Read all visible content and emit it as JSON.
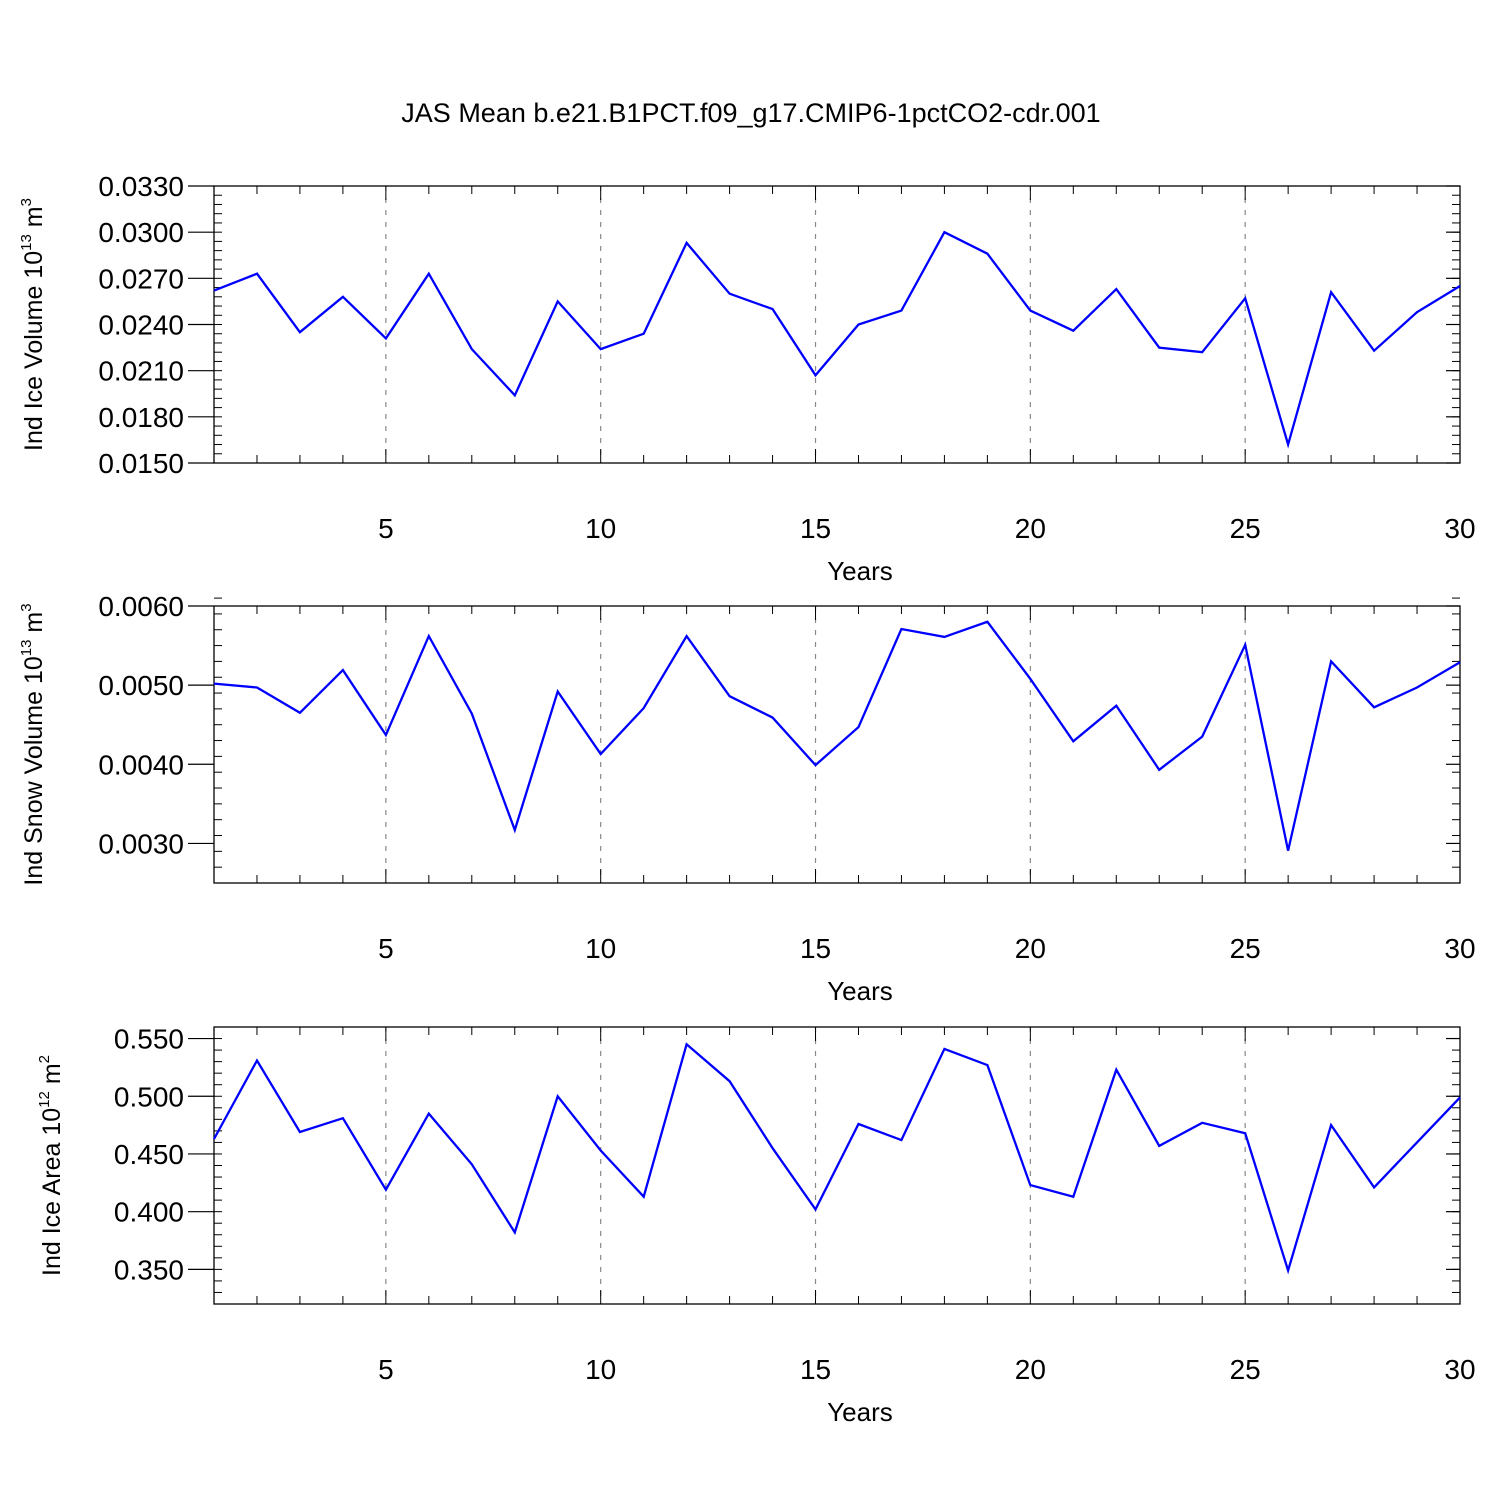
{
  "title": "JAS Mean b.e21.B1PCT.f09_g17.CMIP6-1pctCO2-cdr.001",
  "line_color": "#0000ff",
  "chart_data": [
    {
      "type": "line",
      "title": "JAS Mean b.e21.B1PCT.f09_g17.CMIP6-1pctCO2-cdr.001",
      "ylabel": "Ind Ice Volume 10",
      "ylabel_exp": "13",
      "ylabel_unit": "m",
      "ylabel_unit_exp": "3",
      "xlabel": "Years",
      "xlim": [
        1,
        30
      ],
      "ylim": [
        0.015,
        0.033
      ],
      "yticks": [
        0.015,
        0.018,
        0.021,
        0.024,
        0.027,
        0.03,
        0.033
      ],
      "ytick_labels": [
        "0.0150",
        "0.0180",
        "0.0210",
        "0.0240",
        "0.0270",
        "0.0300",
        "0.0330"
      ],
      "y_minor_step": 0.0006,
      "xticks": [
        5,
        10,
        15,
        20,
        25,
        30
      ],
      "xtick_labels": [
        "5",
        "10",
        "15",
        "20",
        "25",
        "30"
      ],
      "x": [
        1,
        2,
        3,
        4,
        5,
        6,
        7,
        8,
        9,
        10,
        11,
        12,
        13,
        14,
        15,
        16,
        17,
        18,
        19,
        20,
        21,
        22,
        23,
        24,
        25,
        26,
        27,
        28,
        29,
        30
      ],
      "series": [
        {
          "name": "Ind Ice Volume",
          "values": [
            0.0262,
            0.0273,
            0.0235,
            0.0258,
            0.0231,
            0.0273,
            0.0224,
            0.0194,
            0.0255,
            0.0224,
            0.0234,
            0.0293,
            0.026,
            0.025,
            0.0207,
            0.024,
            0.0249,
            0.03,
            0.0286,
            0.0249,
            0.0236,
            0.0263,
            0.0225,
            0.0222,
            0.0257,
            0.0162,
            0.0261,
            0.0223,
            0.0248,
            0.0265
          ]
        }
      ]
    },
    {
      "type": "line",
      "ylabel": "Ind Snow Volume 10",
      "ylabel_exp": "13",
      "ylabel_unit": "m",
      "ylabel_unit_exp": "3",
      "xlabel": "Years",
      "xlim": [
        1,
        30
      ],
      "ylim": [
        0.0025,
        0.006
      ],
      "yticks": [
        0.003,
        0.004,
        0.005,
        0.006
      ],
      "ytick_labels": [
        "0.0030",
        "0.0040",
        "0.0050",
        "0.0060"
      ],
      "y_minor_step": 0.0002,
      "xticks": [
        5,
        10,
        15,
        20,
        25,
        30
      ],
      "xtick_labels": [
        "5",
        "10",
        "15",
        "20",
        "25",
        "30"
      ],
      "x": [
        1,
        2,
        3,
        4,
        5,
        6,
        7,
        8,
        9,
        10,
        11,
        12,
        13,
        14,
        15,
        16,
        17,
        18,
        19,
        20,
        21,
        22,
        23,
        24,
        25,
        26,
        27,
        28,
        29,
        30
      ],
      "series": [
        {
          "name": "Ind Snow Volume",
          "values": [
            0.00502,
            0.00497,
            0.00465,
            0.00519,
            0.00437,
            0.00562,
            0.00464,
            0.00317,
            0.00492,
            0.00413,
            0.00471,
            0.00562,
            0.00486,
            0.00459,
            0.00399,
            0.00447,
            0.00571,
            0.00561,
            0.0058,
            0.00508,
            0.00429,
            0.00474,
            0.00393,
            0.00435,
            0.00551,
            0.00291,
            0.0053,
            0.00472,
            0.00497,
            0.00529
          ]
        }
      ]
    },
    {
      "type": "line",
      "ylabel": "Ind Ice Area 10",
      "ylabel_exp": "12",
      "ylabel_unit": "m",
      "ylabel_unit_exp": "2",
      "xlabel": "Years",
      "xlim": [
        1,
        30
      ],
      "ylim": [
        0.32,
        0.56
      ],
      "yticks": [
        0.35,
        0.4,
        0.45,
        0.5,
        0.55
      ],
      "ytick_labels": [
        "0.350",
        "0.400",
        "0.450",
        "0.500",
        "0.550"
      ],
      "y_minor_step": 0.01,
      "xticks": [
        5,
        10,
        15,
        20,
        25,
        30
      ],
      "xtick_labels": [
        "5",
        "10",
        "15",
        "20",
        "25",
        "30"
      ],
      "x": [
        1,
        2,
        3,
        4,
        5,
        6,
        7,
        8,
        9,
        10,
        11,
        12,
        13,
        14,
        15,
        16,
        17,
        18,
        19,
        20,
        21,
        22,
        23,
        24,
        25,
        26,
        27,
        28,
        29,
        30
      ],
      "series": [
        {
          "name": "Ind Ice Area",
          "values": [
            0.463,
            0.531,
            0.469,
            0.481,
            0.419,
            0.485,
            0.441,
            0.382,
            0.5,
            0.453,
            0.413,
            0.545,
            0.513,
            0.455,
            0.402,
            0.476,
            0.462,
            0.541,
            0.527,
            0.423,
            0.413,
            0.523,
            0.457,
            0.477,
            0.468,
            0.349,
            0.475,
            0.421,
            0.46,
            0.499
          ]
        }
      ]
    }
  ]
}
